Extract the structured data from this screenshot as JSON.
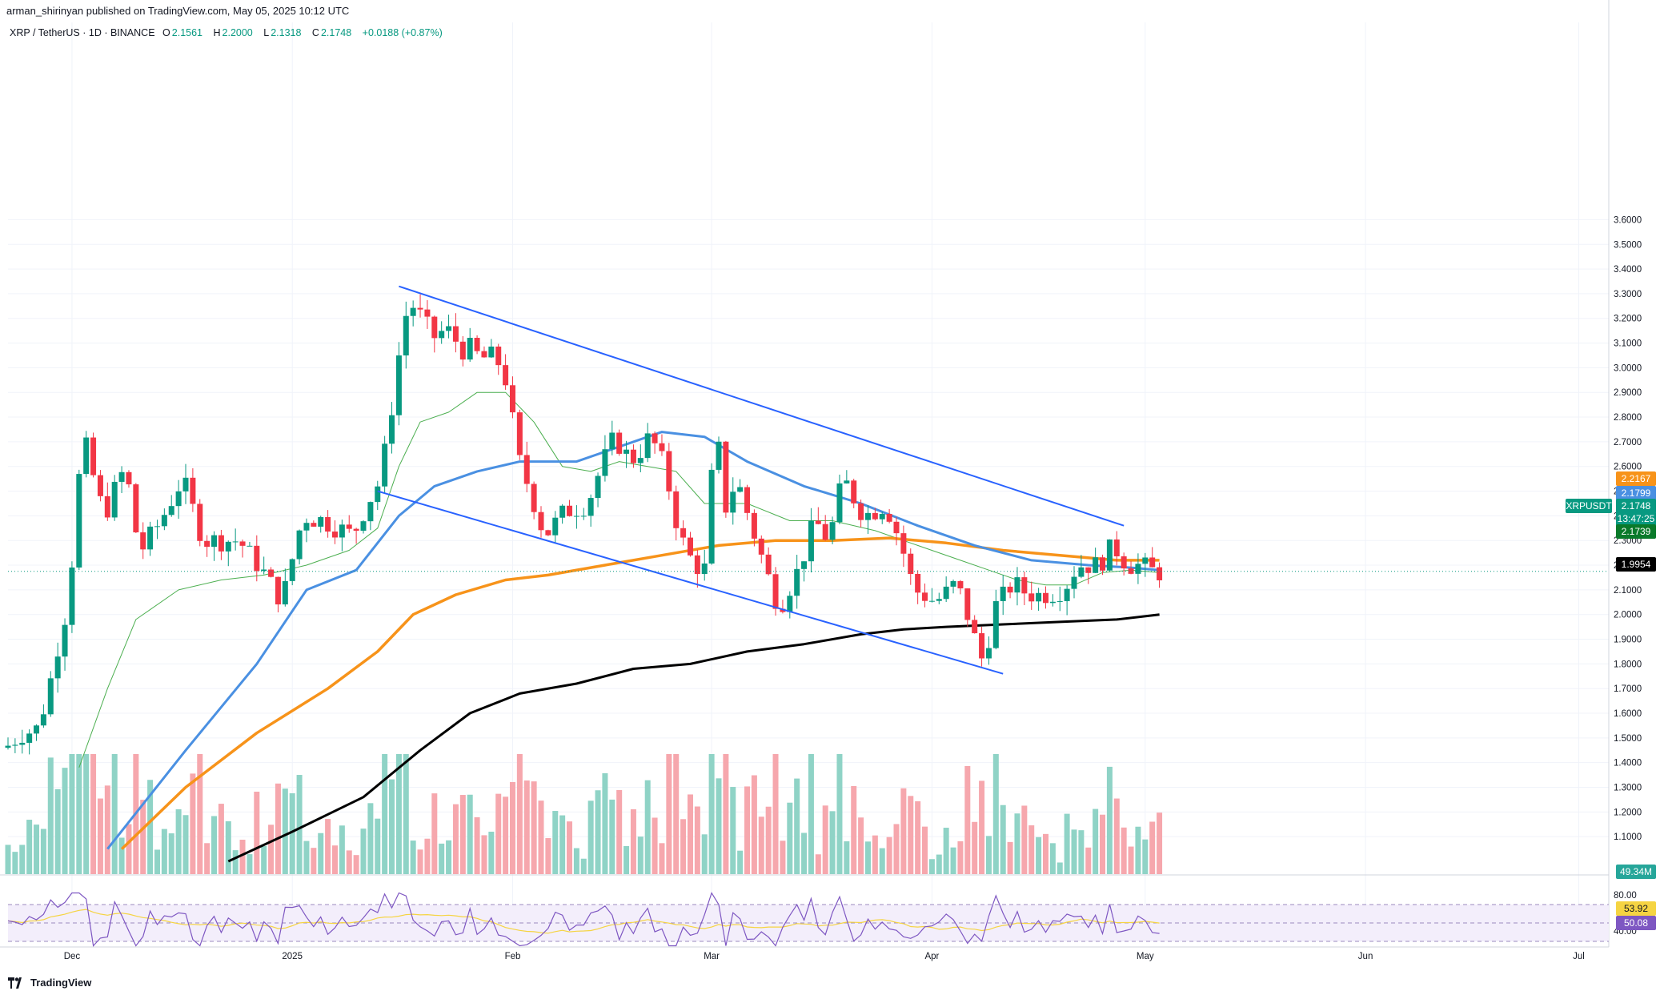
{
  "header": {
    "publisher": "arman_shirinyan published on TradingView.com, May 05, 2025 10:12 UTC",
    "symbol": "XRP / TetherUS · 1D · BINANCE",
    "open_label": "O",
    "open": "2.1561",
    "high_label": "H",
    "high": "2.2000",
    "low_label": "L",
    "low": "2.1318",
    "close_label": "C",
    "close": "2.1748",
    "change": "+0.0188 (+0.87%)"
  },
  "footer": {
    "brand": "TradingView"
  },
  "price_tags": {
    "ema_orange": "2.2167",
    "ema_blue": "2.1799",
    "symbol": "XRPUSDT",
    "last": "2.1748",
    "countdown": "13:47:25",
    "ma_green": "2.1739",
    "ma_black": "1.9954",
    "volume": "49.34M",
    "rsi": "53.92",
    "rsi_ma": "50.08"
  },
  "colors": {
    "up": "#089981",
    "down": "#f23645",
    "vol_up": "#8fd3c6",
    "vol_down": "#f6a7ad",
    "ema_blue": "#4a90e2",
    "ema_orange": "#f7931a",
    "ma_black": "#000000",
    "ma_green": "#4caf50",
    "trendline": "#2962ff",
    "rsi": "#7e57c2",
    "rsi_ma": "#f5d442"
  },
  "chart_data": {
    "type": "candlestick",
    "title": "XRP / TetherUS · 1D · BINANCE",
    "y_axis": {
      "range": [
        1.0,
        3.65
      ],
      "ticks": [
        "3.6000",
        "3.5000",
        "3.4000",
        "3.3000",
        "3.2000",
        "3.1000",
        "3.0000",
        "2.9000",
        "2.8000",
        "2.7000",
        "2.6000",
        "2.5000",
        "2.4000",
        "2.3000",
        "2.2000",
        "2.1000",
        "2.0000",
        "1.9000",
        "1.8000",
        "1.7000",
        "1.6000",
        "1.5000",
        "1.4000",
        "1.3000",
        "1.2000",
        "1.1000"
      ]
    },
    "x_axis": {
      "labels": [
        {
          "text": "Dec",
          "day": 9
        },
        {
          "text": "2025",
          "day": 40
        },
        {
          "text": "Feb",
          "day": 71
        },
        {
          "text": "Mar",
          "day": 99
        },
        {
          "text": "Apr",
          "day": 130
        },
        {
          "text": "May",
          "day": 160
        },
        {
          "text": "Jun",
          "day": 191
        },
        {
          "text": "Jul",
          "day": 221
        }
      ]
    },
    "anchors": [
      {
        "day": 0,
        "price": 1.46
      },
      {
        "day": 5,
        "price": 1.55
      },
      {
        "day": 9,
        "price": 2.05
      },
      {
        "day": 11,
        "price": 2.72
      },
      {
        "day": 14,
        "price": 2.4
      },
      {
        "day": 17,
        "price": 2.6
      },
      {
        "day": 19,
        "price": 2.25
      },
      {
        "day": 22,
        "price": 2.38
      },
      {
        "day": 25,
        "price": 2.55
      },
      {
        "day": 28,
        "price": 2.3
      },
      {
        "day": 33,
        "price": 2.3
      },
      {
        "day": 37,
        "price": 2.15
      },
      {
        "day": 39,
        "price": 2.05
      },
      {
        "day": 42,
        "price": 2.4
      },
      {
        "day": 45,
        "price": 2.38
      },
      {
        "day": 49,
        "price": 2.32
      },
      {
        "day": 51,
        "price": 2.45
      },
      {
        "day": 53,
        "price": 2.55
      },
      {
        "day": 56,
        "price": 3.15
      },
      {
        "day": 57,
        "price": 3.28
      },
      {
        "day": 60,
        "price": 3.12
      },
      {
        "day": 62,
        "price": 3.15
      },
      {
        "day": 66,
        "price": 3.05
      },
      {
        "day": 70,
        "price": 3.02
      },
      {
        "day": 71,
        "price": 2.9
      },
      {
        "day": 72,
        "price": 2.65
      },
      {
        "day": 74,
        "price": 2.5
      },
      {
        "day": 76,
        "price": 2.32
      },
      {
        "day": 79,
        "price": 2.42
      },
      {
        "day": 82,
        "price": 2.45
      },
      {
        "day": 84,
        "price": 2.6
      },
      {
        "day": 86,
        "price": 2.72
      },
      {
        "day": 88,
        "price": 2.62
      },
      {
        "day": 91,
        "price": 2.72
      },
      {
        "day": 93,
        "price": 2.58
      },
      {
        "day": 95,
        "price": 2.32
      },
      {
        "day": 97,
        "price": 2.2
      },
      {
        "day": 99,
        "price": 2.18
      },
      {
        "day": 100,
        "price": 2.92
      },
      {
        "day": 101,
        "price": 2.4
      },
      {
        "day": 103,
        "price": 2.55
      },
      {
        "day": 106,
        "price": 2.28
      },
      {
        "day": 109,
        "price": 2.02
      },
      {
        "day": 112,
        "price": 2.2
      },
      {
        "day": 114,
        "price": 2.38
      },
      {
        "day": 116,
        "price": 2.3
      },
      {
        "day": 118,
        "price": 2.55
      },
      {
        "day": 121,
        "price": 2.4
      },
      {
        "day": 124,
        "price": 2.45
      },
      {
        "day": 126,
        "price": 2.3
      },
      {
        "day": 128,
        "price": 2.1
      },
      {
        "day": 131,
        "price": 2.05
      },
      {
        "day": 134,
        "price": 2.13
      },
      {
        "day": 136,
        "price": 1.95
      },
      {
        "day": 138,
        "price": 1.78
      },
      {
        "day": 139,
        "price": 2.02
      },
      {
        "day": 142,
        "price": 2.13
      },
      {
        "day": 144,
        "price": 2.08
      },
      {
        "day": 147,
        "price": 2.08
      },
      {
        "day": 149,
        "price": 2.1
      },
      {
        "day": 151,
        "price": 2.2
      },
      {
        "day": 154,
        "price": 2.2
      },
      {
        "day": 156,
        "price": 2.28
      },
      {
        "day": 158,
        "price": 2.2
      },
      {
        "day": 160,
        "price": 2.2
      },
      {
        "day": 162,
        "price": 2.17
      }
    ],
    "ema_blue": [
      [
        14,
        1.05
      ],
      [
        25,
        1.45
      ],
      [
        35,
        1.8
      ],
      [
        42,
        2.1
      ],
      [
        49,
        2.18
      ],
      [
        55,
        2.4
      ],
      [
        60,
        2.52
      ],
      [
        66,
        2.58
      ],
      [
        72,
        2.62
      ],
      [
        80,
        2.62
      ],
      [
        86,
        2.68
      ],
      [
        92,
        2.74
      ],
      [
        98,
        2.72
      ],
      [
        104,
        2.62
      ],
      [
        112,
        2.52
      ],
      [
        120,
        2.45
      ],
      [
        128,
        2.36
      ],
      [
        136,
        2.28
      ],
      [
        144,
        2.22
      ],
      [
        152,
        2.2
      ],
      [
        158,
        2.19
      ],
      [
        162,
        2.18
      ]
    ],
    "ema_orange": [
      [
        16,
        1.05
      ],
      [
        25,
        1.3
      ],
      [
        35,
        1.52
      ],
      [
        45,
        1.7
      ],
      [
        52,
        1.85
      ],
      [
        57,
        2.0
      ],
      [
        63,
        2.08
      ],
      [
        70,
        2.14
      ],
      [
        76,
        2.16
      ],
      [
        84,
        2.2
      ],
      [
        92,
        2.24
      ],
      [
        100,
        2.28
      ],
      [
        108,
        2.3
      ],
      [
        116,
        2.3
      ],
      [
        124,
        2.31
      ],
      [
        132,
        2.29
      ],
      [
        140,
        2.26
      ],
      [
        148,
        2.24
      ],
      [
        156,
        2.22
      ],
      [
        162,
        2.22
      ]
    ],
    "ma_black": [
      [
        31,
        1.0
      ],
      [
        40,
        1.12
      ],
      [
        50,
        1.26
      ],
      [
        58,
        1.45
      ],
      [
        65,
        1.6
      ],
      [
        72,
        1.68
      ],
      [
        80,
        1.72
      ],
      [
        88,
        1.78
      ],
      [
        96,
        1.8
      ],
      [
        104,
        1.85
      ],
      [
        112,
        1.88
      ],
      [
        120,
        1.92
      ],
      [
        126,
        1.94
      ],
      [
        132,
        1.95
      ],
      [
        140,
        1.96
      ],
      [
        148,
        1.97
      ],
      [
        156,
        1.98
      ],
      [
        162,
        2.0
      ]
    ],
    "ma_green": [
      [
        10,
        1.38
      ],
      [
        14,
        1.7
      ],
      [
        18,
        1.98
      ],
      [
        24,
        2.1
      ],
      [
        30,
        2.14
      ],
      [
        36,
        2.16
      ],
      [
        42,
        2.2
      ],
      [
        48,
        2.26
      ],
      [
        52,
        2.35
      ],
      [
        55,
        2.6
      ],
      [
        58,
        2.78
      ],
      [
        62,
        2.82
      ],
      [
        66,
        2.9
      ],
      [
        70,
        2.9
      ],
      [
        74,
        2.78
      ],
      [
        78,
        2.6
      ],
      [
        82,
        2.58
      ],
      [
        86,
        2.62
      ],
      [
        90,
        2.6
      ],
      [
        94,
        2.58
      ],
      [
        98,
        2.45
      ],
      [
        104,
        2.45
      ],
      [
        110,
        2.38
      ],
      [
        116,
        2.38
      ],
      [
        122,
        2.34
      ],
      [
        128,
        2.28
      ],
      [
        134,
        2.22
      ],
      [
        138,
        2.18
      ],
      [
        142,
        2.14
      ],
      [
        146,
        2.12
      ],
      [
        150,
        2.12
      ],
      [
        154,
        2.17
      ],
      [
        158,
        2.18
      ],
      [
        162,
        2.17
      ]
    ],
    "trendlines": [
      {
        "from": [
          55,
          3.33
        ],
        "to": [
          157,
          2.36
        ]
      },
      {
        "from": [
          52,
          2.5
        ],
        "to": [
          140,
          1.76
        ]
      }
    ]
  }
}
